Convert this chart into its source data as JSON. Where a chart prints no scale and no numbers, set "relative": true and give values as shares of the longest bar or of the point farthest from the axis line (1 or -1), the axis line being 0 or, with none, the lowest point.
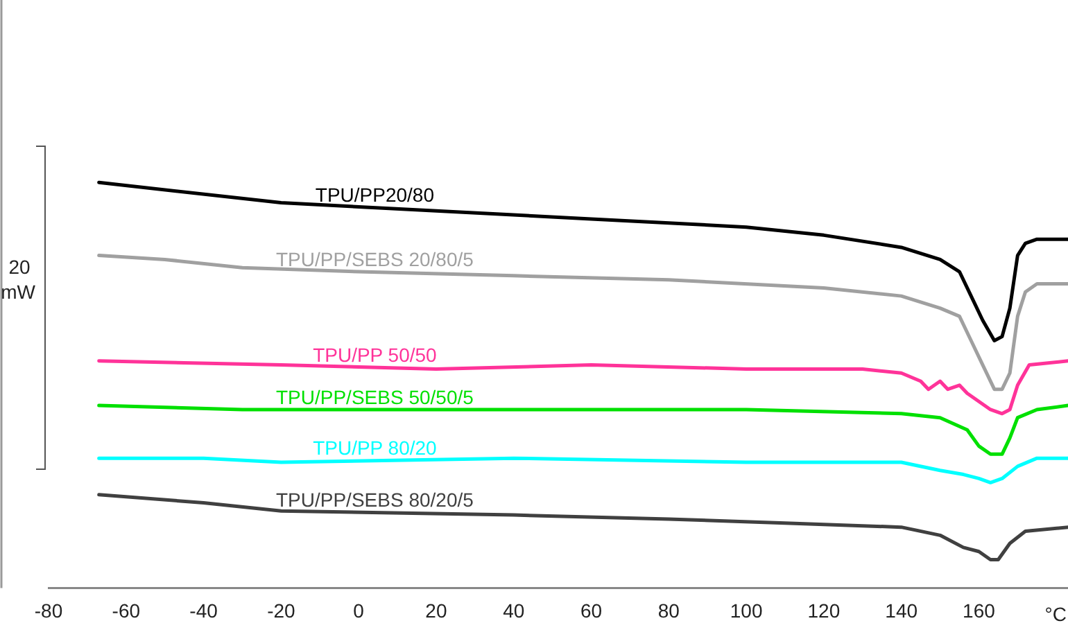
{
  "chart_data": {
    "type": "line",
    "relative": true,
    "xlabel": "°C",
    "ylabel": "20 mW",
    "xlim": [
      -80,
      183
    ],
    "xticks": [
      -80,
      -60,
      -40,
      -20,
      0,
      20,
      40,
      60,
      80,
      100,
      120,
      140,
      160
    ],
    "legend": false,
    "grid": false,
    "marker": "none",
    "line_style": "solid",
    "series": [
      {
        "name": "TPU/PP20/80",
        "color": "#000000",
        "x": [
          -67,
          -20,
          20,
          60,
          100,
          120,
          140,
          150,
          155,
          158,
          161,
          164,
          166,
          168,
          170,
          172,
          175,
          183
        ],
        "values": [
          1.0,
          0.95,
          0.93,
          0.91,
          0.89,
          0.87,
          0.84,
          0.81,
          0.78,
          0.72,
          0.66,
          0.61,
          0.62,
          0.69,
          0.82,
          0.85,
          0.86,
          0.86
        ]
      },
      {
        "name": "TPU/PP/SEBS 20/80/5",
        "color": "#a0a0a0",
        "x": [
          -67,
          -50,
          -30,
          0,
          40,
          80,
          120,
          140,
          150,
          155,
          158,
          161,
          164,
          166,
          168,
          170,
          172,
          175,
          183
        ],
        "values": [
          0.82,
          0.81,
          0.79,
          0.78,
          0.77,
          0.76,
          0.74,
          0.72,
          0.69,
          0.67,
          0.61,
          0.55,
          0.49,
          0.49,
          0.53,
          0.67,
          0.73,
          0.75,
          0.75
        ]
      },
      {
        "name": "TPU/PP 50/50",
        "color": "#ff3399",
        "x": [
          -67,
          -20,
          20,
          60,
          100,
          130,
          140,
          145,
          147,
          150,
          152,
          155,
          157,
          160,
          163,
          166,
          168,
          170,
          173,
          183
        ],
        "values": [
          0.56,
          0.55,
          0.54,
          0.55,
          0.54,
          0.54,
          0.53,
          0.51,
          0.49,
          0.51,
          0.49,
          0.5,
          0.48,
          0.46,
          0.44,
          0.43,
          0.44,
          0.5,
          0.55,
          0.56
        ]
      },
      {
        "name": "TPU/PP/SEBS 50/50/5",
        "color": "#00e000",
        "x": [
          -67,
          -30,
          -20,
          40,
          100,
          140,
          150,
          157,
          160,
          163,
          166,
          168,
          170,
          175,
          183
        ],
        "values": [
          0.45,
          0.44,
          0.44,
          0.44,
          0.44,
          0.43,
          0.42,
          0.39,
          0.35,
          0.33,
          0.33,
          0.37,
          0.42,
          0.44,
          0.45
        ]
      },
      {
        "name": "TPU/PP 80/20",
        "color": "#00ffff",
        "x": [
          -67,
          -40,
          -20,
          40,
          100,
          140,
          150,
          156,
          160,
          163,
          166,
          170,
          175,
          183
        ],
        "values": [
          0.32,
          0.32,
          0.31,
          0.32,
          0.31,
          0.31,
          0.29,
          0.28,
          0.27,
          0.26,
          0.27,
          0.3,
          0.32,
          0.32
        ]
      },
      {
        "name": "TPU/PP/SEBS 80/20/5",
        "color": "#404040",
        "x": [
          -67,
          -40,
          -20,
          40,
          80,
          110,
          140,
          150,
          156,
          160,
          163,
          165,
          168,
          172,
          183
        ],
        "values": [
          0.23,
          0.21,
          0.19,
          0.18,
          0.17,
          0.16,
          0.15,
          0.13,
          0.1,
          0.09,
          0.07,
          0.07,
          0.11,
          0.14,
          0.15
        ]
      }
    ]
  }
}
